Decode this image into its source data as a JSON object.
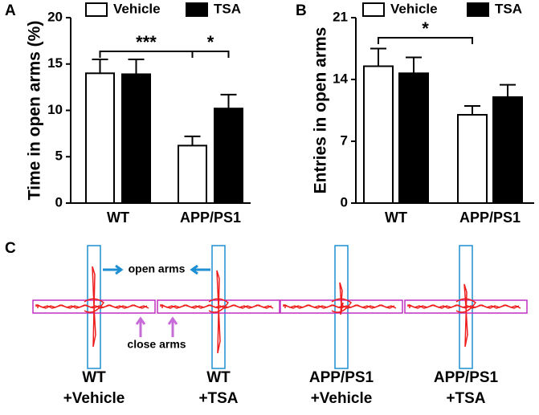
{
  "chart_data": [
    {
      "type": "bar",
      "panel": "A",
      "y_label": "Time in open arms (%)",
      "categories": [
        "WT",
        "APP/PS1"
      ],
      "series": [
        {
          "name": "Vehicle",
          "color": "#ffffff",
          "values": [
            14.0,
            6.2
          ],
          "errors": [
            1.5,
            1.0
          ]
        },
        {
          "name": "TSA",
          "color": "#000000",
          "values": [
            13.9,
            10.2
          ],
          "errors": [
            1.6,
            1.5
          ]
        }
      ],
      "ylim": [
        0,
        20
      ],
      "yticks": [
        0,
        5,
        10,
        15,
        20
      ],
      "annotations": [
        "***",
        "*"
      ]
    },
    {
      "type": "bar",
      "panel": "B",
      "y_label": "Entries in open arms",
      "categories": [
        "WT",
        "APP/PS1"
      ],
      "series": [
        {
          "name": "Vehicle",
          "color": "#ffffff",
          "values": [
            15.5,
            10.0
          ],
          "errors": [
            2.0,
            1.0
          ]
        },
        {
          "name": "TSA",
          "color": "#000000",
          "values": [
            14.7,
            12.0
          ],
          "errors": [
            1.8,
            1.4
          ]
        }
      ],
      "ylim": [
        0,
        21
      ],
      "yticks": [
        0,
        7,
        14,
        21
      ],
      "annotations": [
        "*"
      ]
    }
  ],
  "panel_c": {
    "label": "C",
    "open_arms": "open arms",
    "close_arms": "close arms",
    "groups": [
      [
        "WT",
        "+Vehicle"
      ],
      [
        "WT",
        "+TSA"
      ],
      [
        "APP/PS1",
        "+Vehicle"
      ],
      [
        "APP/PS1",
        "+TSA"
      ]
    ]
  }
}
